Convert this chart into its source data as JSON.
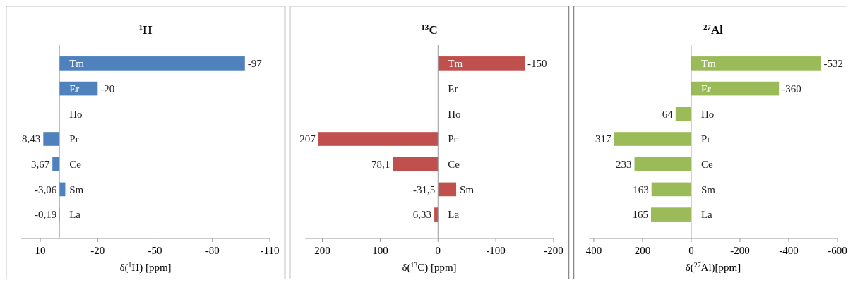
{
  "chart_data": [
    {
      "type": "bar",
      "orientation": "horizontal",
      "title": "$^{1}$H",
      "xlabel": "δ($^{1}$H) [ppm]",
      "categories": [
        "Tm",
        "Er",
        "Ho",
        "Pr",
        "Ce",
        "Sm",
        "La"
      ],
      "series": [
        {
          "color": "#4f81bd",
          "values": [
            -97,
            -20,
            null,
            8.43,
            3.67,
            -3.06,
            -0.19
          ],
          "value_labels": [
            "-97",
            "-20",
            null,
            "8,43",
            "3,67",
            "-3,06",
            "-0,19"
          ]
        }
      ],
      "xlim": [
        20,
        -110
      ],
      "xticks": [
        10,
        -20,
        -50,
        -80,
        -110
      ],
      "grid": false
    },
    {
      "type": "bar",
      "orientation": "horizontal",
      "title": "$^{13}$C",
      "xlabel": "δ($^{13}$C) [ppm]",
      "categories": [
        "Tm",
        "Er",
        "Ho",
        "Pr",
        "Ce",
        "Sm",
        "La"
      ],
      "series": [
        {
          "color": "#c0504d",
          "values": [
            -150,
            null,
            null,
            207,
            78.1,
            -31.5,
            6.33
          ],
          "value_labels": [
            "-150",
            null,
            null,
            "207",
            "78,1",
            "-31,5",
            "6,33"
          ]
        }
      ],
      "xlim": [
        230,
        -200
      ],
      "xticks": [
        200,
        100,
        0,
        -100,
        -200
      ],
      "grid": false
    },
    {
      "type": "bar",
      "orientation": "horizontal",
      "title": "$^{27}$Al",
      "xlabel": "δ($^{27}$Al)[ppm]",
      "categories": [
        "Tm",
        "Er",
        "Ho",
        "Pr",
        "Ce",
        "Sm",
        "La"
      ],
      "series": [
        {
          "color": "#9bbb59",
          "values": [
            -532,
            -360,
            64,
            317,
            233,
            163,
            165
          ],
          "value_labels": [
            "-532",
            "-360",
            "64",
            "317",
            "233",
            "163",
            "165"
          ]
        }
      ],
      "xlim": [
        420,
        -600
      ],
      "xticks": [
        400,
        200,
        0,
        -200,
        -400,
        -600
      ],
      "grid": false
    }
  ]
}
